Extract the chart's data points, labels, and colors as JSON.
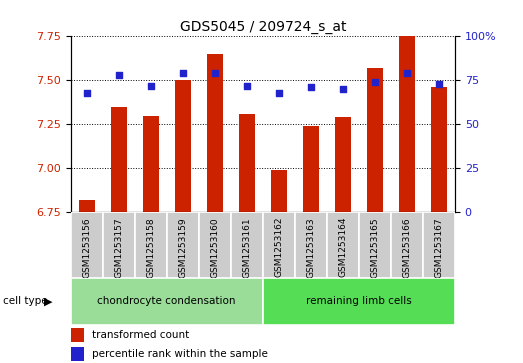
{
  "title": "GDS5045 / 209724_s_at",
  "samples": [
    "GSM1253156",
    "GSM1253157",
    "GSM1253158",
    "GSM1253159",
    "GSM1253160",
    "GSM1253161",
    "GSM1253162",
    "GSM1253163",
    "GSM1253164",
    "GSM1253165",
    "GSM1253166",
    "GSM1253167"
  ],
  "transformed_count": [
    6.82,
    7.35,
    7.3,
    7.5,
    7.65,
    7.31,
    6.99,
    7.24,
    7.29,
    7.57,
    7.75,
    7.46
  ],
  "percentile_rank": [
    68,
    78,
    72,
    79,
    79,
    72,
    68,
    71,
    70,
    74,
    79,
    73
  ],
  "ylim_left": [
    6.75,
    7.75
  ],
  "ylim_right": [
    0,
    100
  ],
  "yticks_left": [
    6.75,
    7.0,
    7.25,
    7.5,
    7.75
  ],
  "yticks_right": [
    0,
    25,
    50,
    75,
    100
  ],
  "bar_color": "#cc2200",
  "dot_color": "#2222cc",
  "grid_color": "#000000",
  "group1_label": "chondrocyte condensation",
  "group2_label": "remaining limb cells",
  "group1_color": "#99dd99",
  "group2_color": "#55dd55",
  "group1_bg_color": "#cccccc",
  "group1_count": 6,
  "group2_count": 6,
  "cell_type_label": "cell type",
  "legend1": "transformed count",
  "legend2": "percentile rank within the sample",
  "bar_width": 0.5,
  "axis_label_color_left": "#cc2200",
  "axis_label_color_right": "#2222cc",
  "title_fontsize": 10,
  "tick_fontsize": 8,
  "label_fontsize": 8
}
